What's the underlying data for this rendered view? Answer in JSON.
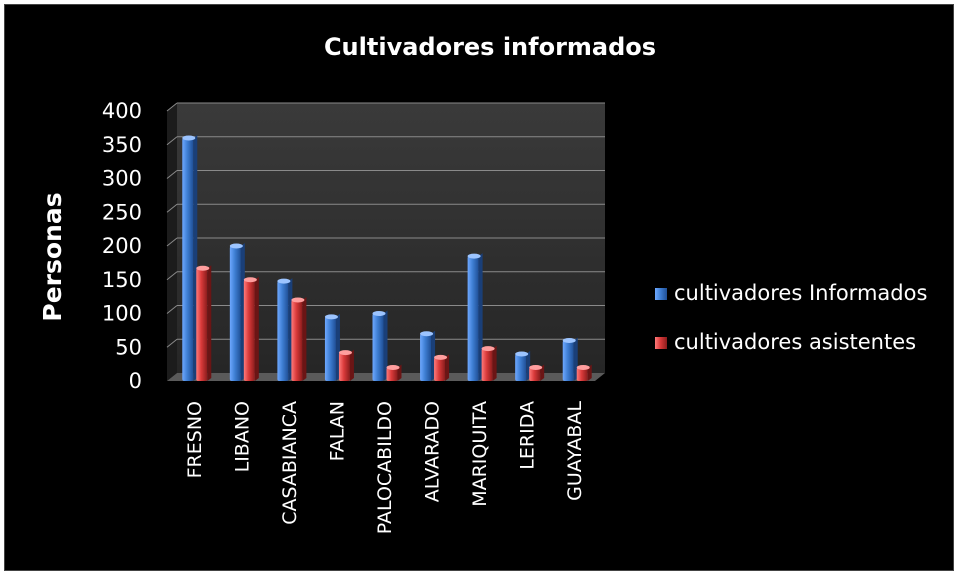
{
  "chart_data": {
    "type": "bar",
    "title": "Cultivadores informados",
    "xlabel": "",
    "ylabel": "Personas",
    "ylim": [
      0,
      400
    ],
    "yticks": [
      0,
      50,
      100,
      150,
      200,
      250,
      300,
      350,
      400
    ],
    "grid": true,
    "legend_position": "right",
    "categories": [
      "FRESNO",
      "LIBANO",
      "CASABIANCA",
      "FALAN",
      "PALOCABILDO",
      "ALVARADO",
      "MARIQUITA",
      "LERIDA",
      "GUAYABAL"
    ],
    "series": [
      {
        "name": "cultivadores Informados",
        "color": "#3f7fd4",
        "values": [
          360,
          200,
          148,
          95,
          100,
          70,
          185,
          40,
          60
        ]
      },
      {
        "name": "cultivadores asistentes",
        "color": "#d93a3a",
        "values": [
          167,
          150,
          120,
          42,
          20,
          35,
          48,
          20,
          20
        ]
      }
    ]
  }
}
